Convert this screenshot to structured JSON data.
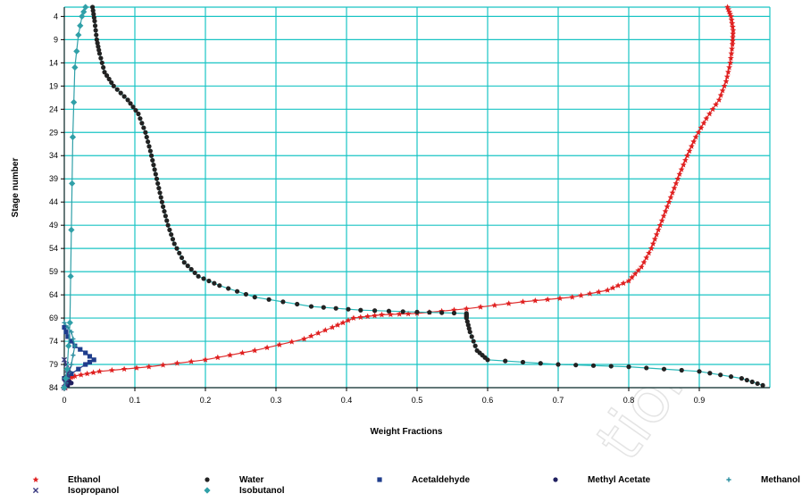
{
  "chart_data": {
    "type": "line",
    "title": "",
    "xlabel": "Weight Fractions",
    "ylabel": "Stage number",
    "xlim": [
      0,
      1
    ],
    "ylim": [
      2,
      84
    ],
    "y_inverted": true,
    "grid": true,
    "legend_position": "bottom",
    "x_ticks": [
      "0",
      "0.1",
      "0.2",
      "0.3",
      "0.4",
      "0.5",
      "0.6",
      "0.7",
      "0.8",
      "0.9"
    ],
    "y_ticks": [
      "4",
      "9",
      "14",
      "19",
      "24",
      "29",
      "34",
      "39",
      "44",
      "49",
      "54",
      "59",
      "64",
      "69",
      "74",
      "79",
      "84"
    ],
    "series": [
      {
        "name": "Ethanol",
        "color": "#e02020",
        "marker": "star",
        "points": [
          [
            0.94,
            2
          ],
          [
            0.945,
            4
          ],
          [
            0.948,
            7
          ],
          [
            0.947,
            10
          ],
          [
            0.944,
            14
          ],
          [
            0.938,
            18
          ],
          [
            0.928,
            22
          ],
          [
            0.91,
            26
          ],
          [
            0.895,
            30
          ],
          [
            0.883,
            34
          ],
          [
            0.872,
            38
          ],
          [
            0.862,
            42
          ],
          [
            0.852,
            46
          ],
          [
            0.842,
            50
          ],
          [
            0.832,
            54
          ],
          [
            0.818,
            58
          ],
          [
            0.8,
            61
          ],
          [
            0.77,
            63
          ],
          [
            0.72,
            64.5
          ],
          [
            0.65,
            65.5
          ],
          [
            0.57,
            67
          ],
          [
            0.5,
            68
          ],
          [
            0.45,
            68.3
          ],
          [
            0.41,
            69
          ],
          [
            0.38,
            71
          ],
          [
            0.34,
            73.5
          ],
          [
            0.27,
            76
          ],
          [
            0.2,
            78
          ],
          [
            0.12,
            79.5
          ],
          [
            0.05,
            80.5
          ],
          [
            0.015,
            81.5
          ],
          [
            0.005,
            82
          ],
          [
            0.002,
            84
          ]
        ]
      },
      {
        "name": "Water",
        "color": "#222222",
        "marker": "circle",
        "points": [
          [
            0.04,
            2
          ],
          [
            0.043,
            5
          ],
          [
            0.046,
            9
          ],
          [
            0.05,
            12
          ],
          [
            0.057,
            16
          ],
          [
            0.07,
            19
          ],
          [
            0.09,
            22
          ],
          [
            0.105,
            25
          ],
          [
            0.115,
            29
          ],
          [
            0.122,
            33
          ],
          [
            0.128,
            37
          ],
          [
            0.134,
            41
          ],
          [
            0.14,
            45
          ],
          [
            0.147,
            49
          ],
          [
            0.156,
            53
          ],
          [
            0.17,
            57
          ],
          [
            0.19,
            60
          ],
          [
            0.22,
            62
          ],
          [
            0.27,
            64.5
          ],
          [
            0.35,
            66.5
          ],
          [
            0.42,
            67.3
          ],
          [
            0.5,
            67.7
          ],
          [
            0.57,
            68
          ],
          [
            0.57,
            69
          ],
          [
            0.575,
            72
          ],
          [
            0.585,
            76
          ],
          [
            0.6,
            78
          ],
          [
            0.7,
            79
          ],
          [
            0.8,
            79.5
          ],
          [
            0.9,
            80.5
          ],
          [
            0.96,
            82
          ],
          [
            0.99,
            83.5
          ]
        ]
      },
      {
        "name": "Acetaldehyde",
        "color": "#1f3d8c",
        "marker": "square",
        "points": [
          [
            0.0,
            71
          ],
          [
            0.005,
            73
          ],
          [
            0.015,
            75
          ],
          [
            0.03,
            76.5
          ],
          [
            0.042,
            78
          ],
          [
            0.03,
            79
          ],
          [
            0.01,
            81
          ],
          [
            0.0,
            82
          ]
        ]
      },
      {
        "name": "Methyl Acetate",
        "color": "#202060",
        "marker": "circle",
        "points": [
          [
            0.0,
            82
          ],
          [
            0.005,
            82.5
          ],
          [
            0.01,
            83
          ],
          [
            0.0,
            84
          ]
        ]
      },
      {
        "name": "Methanol",
        "color": "#2b8fa0",
        "marker": "plus",
        "points": [
          [
            0.0,
            84
          ],
          [
            0.005,
            82
          ],
          [
            0.01,
            79
          ],
          [
            0.015,
            75
          ],
          [
            0.01,
            72
          ],
          [
            0.0,
            70
          ]
        ]
      },
      {
        "name": "Isopropanol",
        "color": "#3a3a80",
        "marker": "x",
        "points": [
          [
            0.0,
            84
          ],
          [
            0.003,
            82
          ],
          [
            0.006,
            80
          ],
          [
            0.0,
            78
          ]
        ]
      },
      {
        "name": "Isobutanol",
        "color": "#30a0a8",
        "marker": "diamond",
        "points": [
          [
            0.0,
            84
          ],
          [
            0.004,
            80
          ],
          [
            0.008,
            70
          ],
          [
            0.01,
            50
          ],
          [
            0.012,
            30
          ],
          [
            0.015,
            15
          ],
          [
            0.02,
            8
          ],
          [
            0.025,
            4
          ],
          [
            0.03,
            2
          ]
        ]
      }
    ]
  },
  "watermark": "tionpro"
}
